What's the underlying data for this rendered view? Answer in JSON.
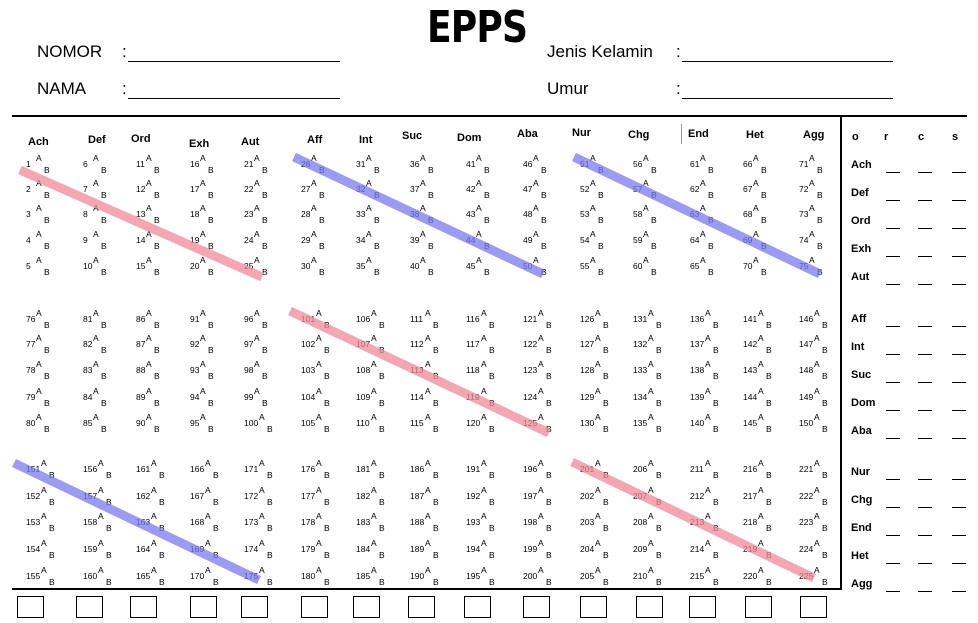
{
  "title": "EPPS",
  "header": {
    "nomor_label": "NOMOR",
    "nama_label": "NAMA",
    "sep": ":",
    "jenis_kelamin_label": "Jenis Kelamin",
    "umur_label": "Umur"
  },
  "item_letters": {
    "a": "A",
    "b": "B"
  },
  "column_headers": [
    "Ach",
    "Def",
    "Ord",
    "Exh",
    "Aut",
    "Aff",
    "Int",
    "Suc",
    "Dom",
    "Aba",
    "Nur",
    "Chg",
    "End",
    "Het",
    "Agg"
  ],
  "blocks": [
    {
      "numbers": [
        [
          1,
          2,
          3,
          4,
          5
        ],
        [
          6,
          7,
          8,
          9,
          10
        ],
        [
          11,
          12,
          13,
          14,
          15
        ],
        [
          16,
          17,
          18,
          19,
          20
        ],
        [
          21,
          22,
          23,
          24,
          25
        ],
        [
          26,
          27,
          28,
          29,
          30
        ],
        [
          31,
          32,
          33,
          34,
          35
        ],
        [
          36,
          37,
          38,
          39,
          40
        ],
        [
          41,
          42,
          43,
          44,
          45
        ],
        [
          46,
          47,
          48,
          49,
          50
        ],
        [
          51,
          52,
          53,
          54,
          55
        ],
        [
          56,
          57,
          58,
          59,
          60
        ],
        [
          61,
          62,
          63,
          64,
          65
        ],
        [
          66,
          67,
          68,
          69,
          70
        ],
        [
          71,
          72,
          73,
          74,
          75
        ]
      ]
    },
    {
      "numbers": [
        [
          76,
          77,
          78,
          79,
          80
        ],
        [
          81,
          82,
          83,
          84,
          85
        ],
        [
          86,
          87,
          88,
          89,
          90
        ],
        [
          91,
          92,
          93,
          94,
          95
        ],
        [
          96,
          97,
          98,
          99,
          100
        ],
        [
          101,
          102,
          103,
          104,
          105
        ],
        [
          106,
          107,
          108,
          109,
          110
        ],
        [
          111,
          112,
          113,
          114,
          115
        ],
        [
          116,
          117,
          118,
          119,
          120
        ],
        [
          121,
          122,
          123,
          124,
          125
        ],
        [
          126,
          127,
          128,
          129,
          130
        ],
        [
          131,
          132,
          133,
          134,
          135
        ],
        [
          136,
          137,
          138,
          139,
          140
        ],
        [
          141,
          142,
          143,
          144,
          145
        ],
        [
          146,
          147,
          148,
          149,
          150
        ]
      ]
    },
    {
      "numbers": [
        [
          151,
          152,
          153,
          154,
          155
        ],
        [
          156,
          157,
          158,
          159,
          160
        ],
        [
          161,
          162,
          163,
          164,
          165
        ],
        [
          166,
          167,
          168,
          169,
          170
        ],
        [
          171,
          172,
          173,
          174,
          175
        ],
        [
          176,
          177,
          178,
          179,
          180
        ],
        [
          181,
          182,
          183,
          184,
          185
        ],
        [
          186,
          187,
          188,
          189,
          190
        ],
        [
          191,
          192,
          193,
          194,
          195
        ],
        [
          196,
          197,
          198,
          199,
          200
        ],
        [
          201,
          202,
          203,
          204,
          205
        ],
        [
          206,
          207,
          208,
          209,
          210
        ],
        [
          211,
          212,
          213,
          214,
          215
        ],
        [
          216,
          217,
          218,
          219,
          220
        ],
        [
          221,
          222,
          223,
          224,
          225
        ]
      ]
    }
  ],
  "highlights": [
    {
      "color": "#ee8a99"
    },
    {
      "color": "#7a7aee"
    },
    {
      "color": "#7a7aee"
    },
    {
      "color": "#ee8a99"
    },
    {
      "color": "#7a7aee"
    },
    {
      "color": "#ee8a99"
    }
  ],
  "score_panel": {
    "headers": [
      "o",
      "r",
      "c",
      "s"
    ],
    "groups": [
      [
        "Ach",
        "Def",
        "Ord",
        "Exh",
        "Aut"
      ],
      [
        "Aff",
        "Int",
        "Suc",
        "Dom",
        "Aba"
      ],
      [
        "Nur",
        "Chg",
        "End",
        "Het",
        "Agg"
      ]
    ]
  },
  "answer_boxes": 15
}
